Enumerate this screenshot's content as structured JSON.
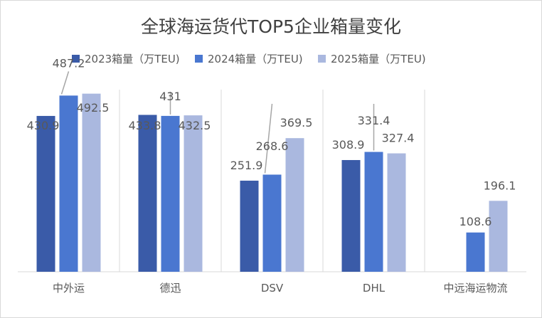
{
  "chart_data": {
    "type": "bar",
    "title": "全球海运货代TOP5企业箱量变化",
    "categories": [
      "中外运",
      "德迅",
      "DSV",
      "DHL",
      "中远海运物流"
    ],
    "series": [
      {
        "name": "2023箱量（万TEU)",
        "color": "#3a5ba8",
        "values": [
          430.9,
          433.8,
          251.9,
          308.9,
          null
        ]
      },
      {
        "name": "2024箱量（万TEU)",
        "color": "#4a77d0",
        "values": [
          487.2,
          431,
          268.6,
          331.4,
          108.6
        ]
      },
      {
        "name": "2025箱量（万TEU)",
        "color": "#aab8df",
        "values": [
          492.5,
          432.5,
          369.5,
          327.4,
          196.1
        ]
      }
    ],
    "value_labels": [
      [
        "430.9",
        "487.2",
        "492.5"
      ],
      [
        "433.8",
        "431",
        "432.5"
      ],
      [
        "251.9",
        "268.6",
        "369.5"
      ],
      [
        "308.9",
        "331.4",
        "327.4"
      ],
      [
        "",
        "108.6",
        "196.1"
      ]
    ],
    "ylim": [
      0,
      600
    ],
    "grid": "vertical separators",
    "legend_position": "top"
  }
}
